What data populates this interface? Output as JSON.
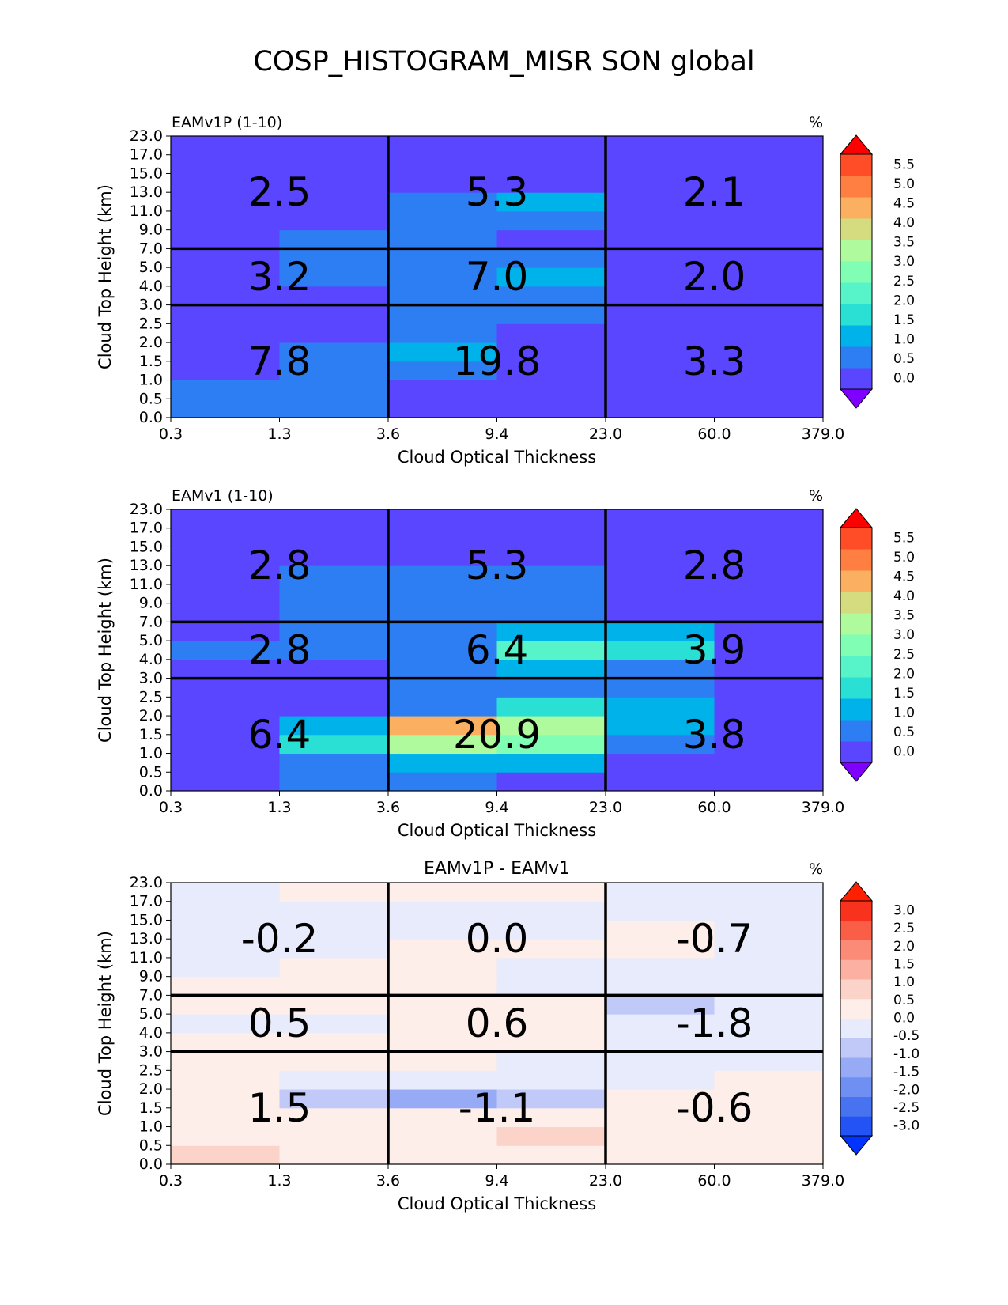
{
  "figure": {
    "title": "COSP_HISTOGRAM_MISR SON global"
  },
  "chart_data": [
    {
      "type": "heatmap",
      "title_left": "EAMv1P (1-10)",
      "title_center": "",
      "units": "%",
      "xlabel": "Cloud Optical Thickness",
      "ylabel": "Cloud Top Height (km)",
      "x_ticks": [
        "0.3",
        "1.3",
        "3.6",
        "9.4",
        "23.0",
        "60.0",
        "379.0"
      ],
      "y_ticks": [
        "0.0",
        "0.5",
        "1.0",
        "1.5",
        "2.0",
        "2.5",
        "3.0",
        "4.0",
        "5.0",
        "7.0",
        "9.0",
        "11.0",
        "13.0",
        "15.0",
        "17.0",
        "23.0"
      ],
      "colorbar": {
        "ticks": [
          "0.0",
          "0.5",
          "1.0",
          "1.5",
          "2.0",
          "2.5",
          "3.0",
          "3.5",
          "4.0",
          "4.5",
          "5.0",
          "5.5"
        ],
        "levels": [
          0,
          0.5,
          1.0,
          1.5,
          2.0,
          2.5,
          3.0,
          3.5,
          4.0,
          4.5,
          5.0,
          5.5
        ],
        "colors": [
          "#8000ff",
          "#5a46ff",
          "#2e7ef3",
          "#00b2ea",
          "#2ae0d5",
          "#56f4c8",
          "#80ffb4",
          "#aefa9c",
          "#d4dc7f",
          "#fab060",
          "#ff7e41",
          "#ff4d27",
          "#ff0000"
        ]
      },
      "values": [
        [
          0.8,
          0.7,
          0.2,
          0.1,
          0.0,
          0.1
        ],
        [
          0.7,
          0.6,
          0.3,
          0.1,
          0.0,
          0.0
        ],
        [
          0.2,
          0.8,
          0.9,
          0.4,
          0.1,
          0.0
        ],
        [
          0.1,
          0.9,
          1.0,
          0.4,
          0.2,
          0.0
        ],
        [
          0.0,
          0.3,
          0.5,
          0.3,
          0.1,
          0.0
        ],
        [
          0.0,
          0.3,
          0.6,
          0.6,
          0.4,
          0.0
        ],
        [
          0.2,
          0.4,
          0.6,
          0.7,
          0.3,
          0.0
        ],
        [
          0.1,
          0.5,
          0.6,
          1.0,
          0.3,
          0.1
        ],
        [
          0.2,
          0.5,
          0.5,
          0.5,
          0.2,
          0.0
        ],
        [
          0.2,
          0.5,
          0.5,
          0.4,
          0.3,
          0.1
        ],
        [
          0.2,
          0.4,
          0.5,
          0.5,
          0.4,
          0.1
        ],
        [
          0.2,
          0.3,
          0.6,
          1.0,
          0.4,
          0.2
        ],
        [
          0.1,
          0.4,
          0.4,
          0.2,
          0.2,
          0.1
        ],
        [
          0.1,
          0.3,
          0.4,
          0.3,
          0.2,
          0.0
        ],
        [
          0.0,
          0.2,
          0.3,
          0.3,
          0.2,
          0.1
        ]
      ],
      "annotations": {
        "x_bounds": [
          0,
          2,
          4,
          6
        ],
        "y_bounds": [
          0,
          6,
          9,
          15
        ],
        "values": [
          [
            "7.8",
            "19.8",
            "3.3"
          ],
          [
            "3.2",
            "7.0",
            "2.0"
          ],
          [
            "2.5",
            "5.3",
            "2.1"
          ]
        ]
      }
    },
    {
      "type": "heatmap",
      "title_left": "EAMv1 (1-10)",
      "title_center": "",
      "units": "%",
      "xlabel": "Cloud Optical Thickness",
      "ylabel": "Cloud Top Height (km)",
      "x_ticks": [
        "0.3",
        "1.3",
        "3.6",
        "9.4",
        "23.0",
        "60.0",
        "379.0"
      ],
      "y_ticks": [
        "0.0",
        "0.5",
        "1.0",
        "1.5",
        "2.0",
        "2.5",
        "3.0",
        "4.0",
        "5.0",
        "7.0",
        "9.0",
        "11.0",
        "13.0",
        "15.0",
        "17.0",
        "23.0"
      ],
      "colorbar": {
        "ticks": [
          "0.0",
          "0.5",
          "1.0",
          "1.5",
          "2.0",
          "2.5",
          "3.0",
          "3.5",
          "4.0",
          "4.5",
          "5.0",
          "5.5"
        ],
        "levels": [
          0,
          0.5,
          1.0,
          1.5,
          2.0,
          2.5,
          3.0,
          3.5,
          4.0,
          4.5,
          5.0,
          5.5
        ],
        "colors": [
          "#8000ff",
          "#5a46ff",
          "#2e7ef3",
          "#00b2ea",
          "#2ae0d5",
          "#56f4c8",
          "#80ffb4",
          "#aefa9c",
          "#d4dc7f",
          "#fab060",
          "#ff7e41",
          "#ff4d27",
          "#ff0000"
        ]
      },
      "values": [
        [
          0.2,
          0.6,
          0.6,
          0.3,
          0.1,
          0.0
        ],
        [
          0.2,
          0.7,
          1.2,
          1.0,
          0.2,
          0.0
        ],
        [
          0.3,
          1.6,
          3.0,
          2.8,
          0.8,
          0.1
        ],
        [
          0.2,
          1.2,
          4.2,
          3.0,
          1.2,
          0.1
        ],
        [
          0.1,
          0.3,
          0.7,
          1.8,
          1.2,
          0.1
        ],
        [
          0.1,
          0.3,
          0.6,
          0.7,
          0.6,
          0.1
        ],
        [
          0.2,
          0.4,
          0.6,
          1.2,
          0.8,
          0.2
        ],
        [
          0.6,
          0.7,
          0.8,
          2.0,
          1.6,
          0.3
        ],
        [
          0.3,
          0.8,
          0.9,
          1.2,
          1.3,
          0.3
        ],
        [
          0.2,
          0.7,
          0.9,
          0.7,
          0.4,
          0.1
        ],
        [
          0.2,
          0.8,
          0.8,
          0.5,
          0.4,
          0.2
        ],
        [
          0.2,
          0.7,
          0.9,
          0.7,
          0.4,
          0.2
        ],
        [
          0.2,
          0.4,
          0.4,
          0.4,
          0.3,
          0.2
        ],
        [
          0.2,
          0.4,
          0.4,
          0.3,
          0.4,
          0.1
        ],
        [
          0.1,
          0.2,
          0.3,
          0.3,
          0.2,
          0.1
        ]
      ],
      "annotations": {
        "x_bounds": [
          0,
          2,
          4,
          6
        ],
        "y_bounds": [
          0,
          6,
          9,
          15
        ],
        "values": [
          [
            "6.4",
            "20.9",
            "3.8"
          ],
          [
            "2.8",
            "6.4",
            "3.9"
          ],
          [
            "2.8",
            "5.3",
            "2.8"
          ]
        ]
      }
    },
    {
      "type": "heatmap",
      "title_left": "",
      "title_center": "EAMv1P - EAMv1",
      "units": "%",
      "xlabel": "Cloud Optical Thickness",
      "ylabel": "Cloud Top Height (km)",
      "x_ticks": [
        "0.3",
        "1.3",
        "3.6",
        "9.4",
        "23.0",
        "60.0",
        "379.0"
      ],
      "y_ticks": [
        "0.0",
        "0.5",
        "1.0",
        "1.5",
        "2.0",
        "2.5",
        "3.0",
        "4.0",
        "5.0",
        "7.0",
        "9.0",
        "11.0",
        "13.0",
        "15.0",
        "17.0",
        "23.0"
      ],
      "colorbar": {
        "ticks": [
          "-3.0",
          "-2.5",
          "-2.0",
          "-1.5",
          "-1.0",
          "-0.5",
          "0.0",
          "0.5",
          "1.0",
          "1.5",
          "2.0",
          "2.5",
          "3.0"
        ],
        "levels": [
          -3.0,
          -2.5,
          -2.0,
          -1.5,
          -1.0,
          -0.5,
          0.0,
          0.5,
          1.0,
          1.5,
          2.0,
          2.5,
          3.0
        ],
        "colors": [
          "#0033ff",
          "#2353f5",
          "#4772f0",
          "#6f8ff2",
          "#97aaf5",
          "#c0c9f8",
          "#e8ebfb",
          "#fdeeea",
          "#fcd3c9",
          "#fcb0a1",
          "#fb8b77",
          "#fa5e47",
          "#f8321c",
          "#ff2000"
        ]
      },
      "values": [
        [
          0.6,
          0.1,
          0.0,
          0.0,
          0.0,
          0.0
        ],
        [
          0.1,
          0.1,
          0.1,
          0.6,
          0.1,
          0.0
        ],
        [
          0.1,
          0.1,
          0.1,
          0.1,
          0.1,
          0.1
        ],
        [
          0.1,
          -0.6,
          -1.4,
          -0.6,
          0.1,
          0.1
        ],
        [
          0.1,
          -0.1,
          -0.1,
          -0.1,
          -0.1,
          0.1
        ],
        [
          0.1,
          0.1,
          0.1,
          -0.1,
          -0.1,
          -0.1
        ],
        [
          0.1,
          0.1,
          0.1,
          0.1,
          -0.1,
          -0.1
        ],
        [
          -0.1,
          -0.1,
          0.1,
          0.1,
          -0.1,
          -0.1
        ],
        [
          0.1,
          0.1,
          0.1,
          0.1,
          -0.6,
          -0.1
        ],
        [
          0.1,
          0.1,
          0.1,
          -0.1,
          -0.1,
          -0.1
        ],
        [
          -0.1,
          0.1,
          0.1,
          -0.1,
          -0.1,
          -0.1
        ],
        [
          -0.1,
          -0.1,
          0.1,
          0.1,
          0.1,
          -0.1
        ],
        [
          -0.1,
          -0.1,
          -0.1,
          -0.1,
          0.1,
          -0.1
        ],
        [
          -0.1,
          -0.1,
          -0.1,
          -0.1,
          -0.1,
          -0.1
        ],
        [
          -0.1,
          0.1,
          0.1,
          0.1,
          -0.1,
          -0.1
        ]
      ],
      "annotations": {
        "x_bounds": [
          0,
          2,
          4,
          6
        ],
        "y_bounds": [
          0,
          6,
          9,
          15
        ],
        "values": [
          [
            "1.5",
            "-1.1",
            "-0.6"
          ],
          [
            "0.5",
            "0.6",
            "-1.8"
          ],
          [
            "-0.2",
            "0.0",
            "-0.7"
          ]
        ]
      }
    }
  ]
}
